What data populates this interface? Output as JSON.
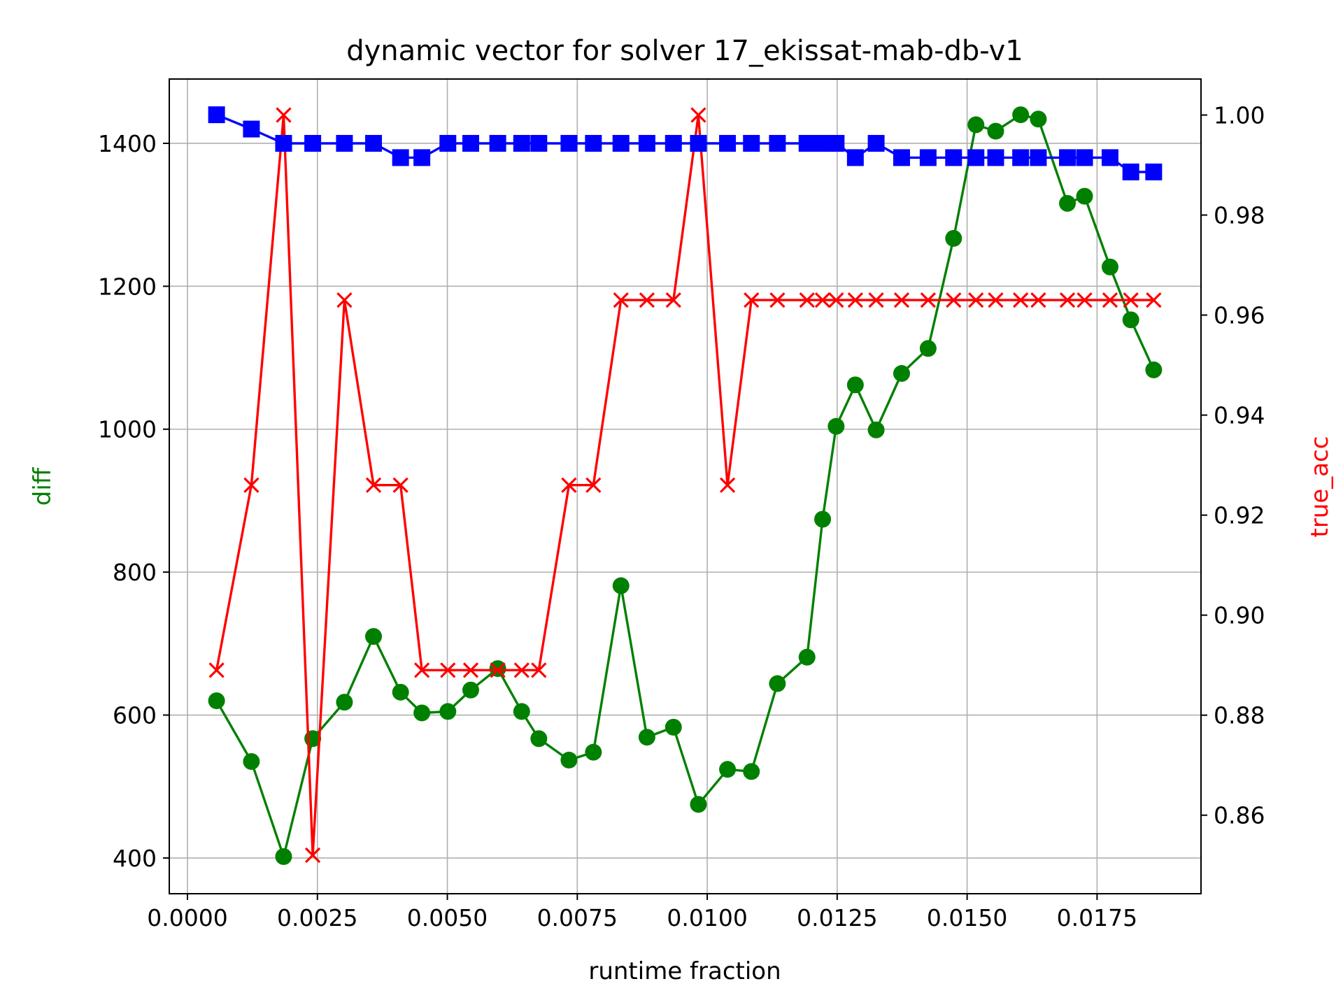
{
  "chart_data": {
    "type": "line",
    "title": "dynamic vector for solver 17_ekissat-mab-db-v1",
    "xlabel": "runtime fraction",
    "ylabel": "diff",
    "ylabel_right": "true_acc",
    "xlim": [
      -0.00035,
      0.0195
    ],
    "ylim": [
      350,
      1490
    ],
    "ylim_right": [
      0.8443,
      1.0072
    ],
    "grid": true,
    "x_ticks": [
      0.0,
      0.0025,
      0.005,
      0.0075,
      0.01,
      0.0125,
      0.015,
      0.0175
    ],
    "x_tick_labels": [
      "0.0000",
      "0.0025",
      "0.0050",
      "0.0075",
      "0.0100",
      "0.0125",
      "0.0150",
      "0.0175"
    ],
    "y_ticks": [
      400,
      600,
      800,
      1000,
      1200,
      1400
    ],
    "y_tick_labels": [
      "400",
      "600",
      "800",
      "1000",
      "1200",
      "1400"
    ],
    "y_right_ticks": [
      0.86,
      0.88,
      0.9,
      0.92,
      0.94,
      0.96,
      0.98,
      1.0
    ],
    "y_right_tick_labels": [
      "0.86",
      "0.88",
      "0.90",
      "0.92",
      "0.94",
      "0.96",
      "0.98",
      "1.00"
    ],
    "series": [
      {
        "axis": "left",
        "color": "#008000",
        "marker": "circle",
        "x": [
          0.00056,
          0.00123,
          0.00185,
          0.00241,
          0.00302,
          0.00358,
          0.0041,
          0.00451,
          0.00501,
          0.00545,
          0.00597,
          0.00643,
          0.00676,
          0.00734,
          0.00781,
          0.00834,
          0.00884,
          0.00935,
          0.00983,
          0.01039,
          0.01085,
          0.01135,
          0.01192,
          0.01222,
          0.01248,
          0.01285,
          0.01325,
          0.01374,
          0.01425,
          0.01474,
          0.01517,
          0.01555,
          0.01603,
          0.01637,
          0.01693,
          0.01726,
          0.01775,
          0.01815,
          0.01859
        ],
        "y": [
          620,
          535,
          402,
          567,
          618,
          710,
          632,
          603,
          605,
          635,
          665,
          605,
          567,
          537,
          548,
          781,
          569,
          583,
          475,
          524,
          521,
          644,
          681,
          874,
          1004,
          1062,
          999,
          1078,
          1113,
          1267,
          1426,
          1417,
          1440,
          1434,
          1316,
          1326,
          1227,
          1153,
          1083
        ]
      },
      {
        "axis": "right",
        "color": "#ff0000",
        "marker": "x",
        "x": [
          0.00056,
          0.00123,
          0.00185,
          0.00241,
          0.00302,
          0.00358,
          0.0041,
          0.00451,
          0.00501,
          0.00545,
          0.00597,
          0.00643,
          0.00676,
          0.00734,
          0.00781,
          0.00834,
          0.00884,
          0.00935,
          0.00983,
          0.01039,
          0.01085,
          0.01135,
          0.01192,
          0.01222,
          0.01248,
          0.01285,
          0.01325,
          0.01374,
          0.01425,
          0.01474,
          0.01517,
          0.01555,
          0.01603,
          0.01637,
          0.01693,
          0.01726,
          0.01775,
          0.01815,
          0.01859
        ],
        "y": [
          0.889,
          0.926,
          1.0,
          0.852,
          0.963,
          0.926,
          0.926,
          0.889,
          0.889,
          0.889,
          0.889,
          0.889,
          0.889,
          0.926,
          0.926,
          0.963,
          0.963,
          0.963,
          1.0,
          0.926,
          0.963,
          0.963,
          0.963,
          0.963,
          0.963,
          0.963,
          0.963,
          0.963,
          0.963,
          0.963,
          0.963,
          0.963,
          0.963,
          0.963,
          0.963,
          0.963,
          0.963,
          0.963,
          0.963
        ]
      },
      {
        "axis": "left",
        "color": "#0000ff",
        "marker": "square",
        "x": [
          0.00056,
          0.00123,
          0.00185,
          0.00241,
          0.00302,
          0.00358,
          0.0041,
          0.00451,
          0.00501,
          0.00545,
          0.00597,
          0.00643,
          0.00676,
          0.00734,
          0.00781,
          0.00834,
          0.00884,
          0.00935,
          0.00983,
          0.01039,
          0.01085,
          0.01135,
          0.01192,
          0.01222,
          0.01248,
          0.01285,
          0.01325,
          0.01374,
          0.01425,
          0.01474,
          0.01517,
          0.01555,
          0.01603,
          0.01637,
          0.01693,
          0.01726,
          0.01775,
          0.01815,
          0.01859
        ],
        "y": [
          1440,
          1420,
          1400,
          1400,
          1400,
          1400,
          1380,
          1380,
          1400,
          1400,
          1400,
          1400,
          1400,
          1400,
          1400,
          1400,
          1400,
          1400,
          1400,
          1400,
          1400,
          1400,
          1400,
          1400,
          1400,
          1380,
          1400,
          1380,
          1380,
          1380,
          1380,
          1380,
          1380,
          1380,
          1380,
          1380,
          1380,
          1360,
          1360
        ]
      }
    ]
  }
}
